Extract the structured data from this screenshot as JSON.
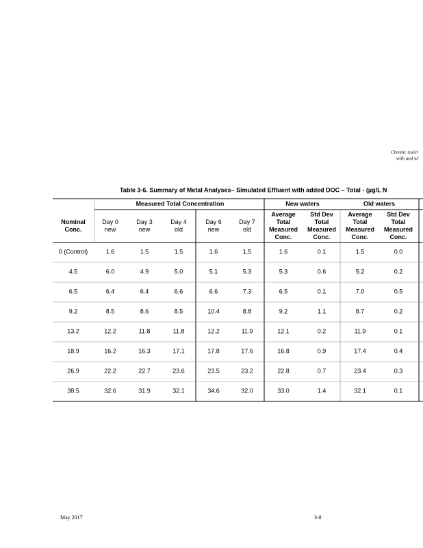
{
  "header": {
    "lines": [
      "Chronic toxici",
      "with and wi"
    ]
  },
  "table": {
    "title": "Table 3-6. Summary of Metal Analyses– Simulated Effluent with added DOC – Total - (µg/L N",
    "groups": [
      "Measured Total Concentration",
      "New waters",
      "Old waters"
    ],
    "columns": [
      [
        "Nominal",
        "Conc."
      ],
      [
        "Day 0",
        "new"
      ],
      [
        "Day 3",
        "new"
      ],
      [
        "Day 4",
        "old"
      ],
      [
        "Day 6",
        "new"
      ],
      [
        "Day 7",
        "old"
      ],
      [
        "Average",
        "Total",
        "Measured",
        "Conc."
      ],
      [
        "Std Dev",
        "Total",
        "Measured",
        "Conc."
      ],
      [
        "Average",
        "Total",
        "Measured",
        "Conc."
      ],
      [
        "Std Dev",
        "Total",
        "Measured",
        "Conc."
      ]
    ],
    "rows": [
      [
        "0 (Control)",
        "1.6",
        "1.5",
        "1.5",
        "1.6",
        "1.5",
        "1.6",
        "0.1",
        "1.5",
        "0.0"
      ],
      [
        "4.5",
        "6.0",
        "4.9",
        "5.0",
        "5.1",
        "5.3",
        "5.3",
        "0.6",
        "5.2",
        "0.2"
      ],
      [
        "6.5",
        "6.4",
        "6.4",
        "6.6",
        "6.6",
        "7.3",
        "6.5",
        "0.1",
        "7.0",
        "0.5"
      ],
      [
        "9.2",
        "8.5",
        "8.6",
        "8.5",
        "10.4",
        "8.8",
        "9.2",
        "1.1",
        "8.7",
        "0.2"
      ],
      [
        "13.2",
        "12.2",
        "11.8",
        "11.8",
        "12.2",
        "11.9",
        "12.1",
        "0.2",
        "11.9",
        "0.1"
      ],
      [
        "18.9",
        "16.2",
        "16.3",
        "17.1",
        "17.8",
        "17.6",
        "16.8",
        "0.9",
        "17.4",
        "0.4"
      ],
      [
        "26.9",
        "22.2",
        "22.7",
        "23.6",
        "23.5",
        "23.2",
        "22.8",
        "0.7",
        "23.4",
        "0.3"
      ],
      [
        "38.5",
        "32.6",
        "31.9",
        "32.1",
        "34.6",
        "32.0",
        "33.0",
        "1.4",
        "32.1",
        "0.1"
      ]
    ]
  },
  "footer": {
    "date": "May 2017",
    "page": "3-8"
  }
}
